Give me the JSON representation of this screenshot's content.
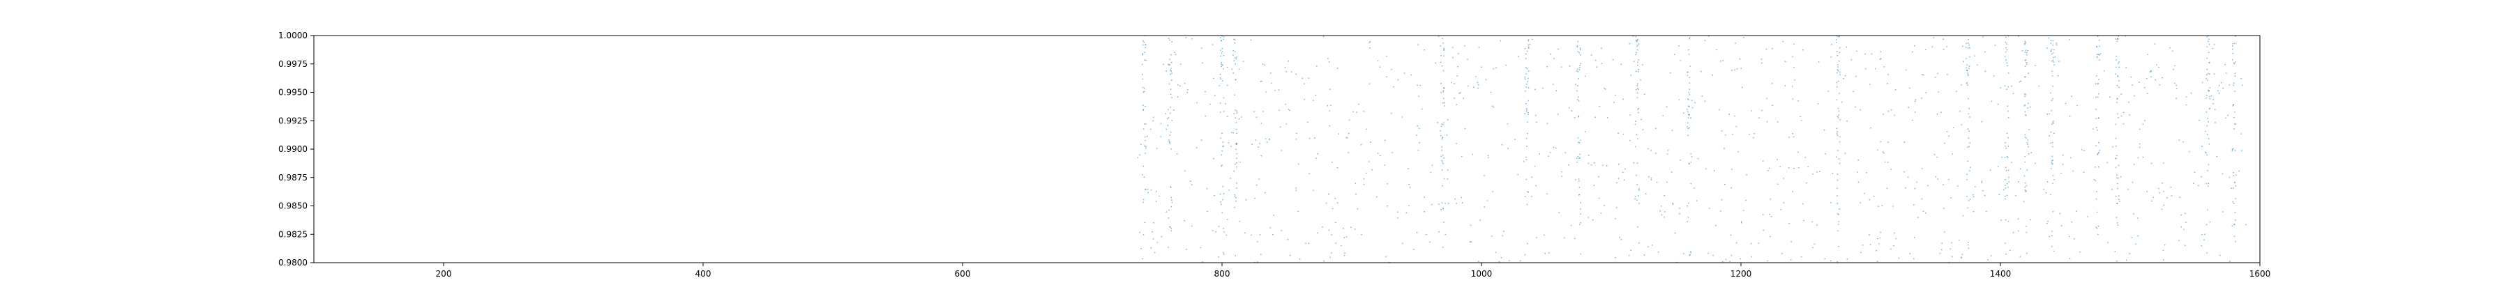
{
  "chart_data": {
    "type": "scatter",
    "title": "",
    "xlabel": "",
    "ylabel": "",
    "xlim": [
      100,
      1600
    ],
    "ylim": [
      0.98,
      1.0
    ],
    "grid": false,
    "x_ticks": [
      "200",
      "400",
      "600",
      "800",
      "1000",
      "1200",
      "1400",
      "1600"
    ],
    "y_ticks": [
      "0.9800",
      "0.9825",
      "0.9850",
      "0.9875",
      "0.9900",
      "0.9925",
      "0.9950",
      "0.9975",
      "1.0000"
    ],
    "point_color": "#1f77b4",
    "series": [
      {
        "x_range": [
          735,
          1590
        ],
        "y_range": [
          0.98,
          1.0
        ],
        "count": 1800,
        "dense_columns": [
          740,
          760,
          800,
          810,
          970,
          1035,
          1075,
          1120,
          1160,
          1275,
          1375,
          1405,
          1420,
          1440,
          1475,
          1490,
          1560,
          1580
        ]
      }
    ]
  }
}
